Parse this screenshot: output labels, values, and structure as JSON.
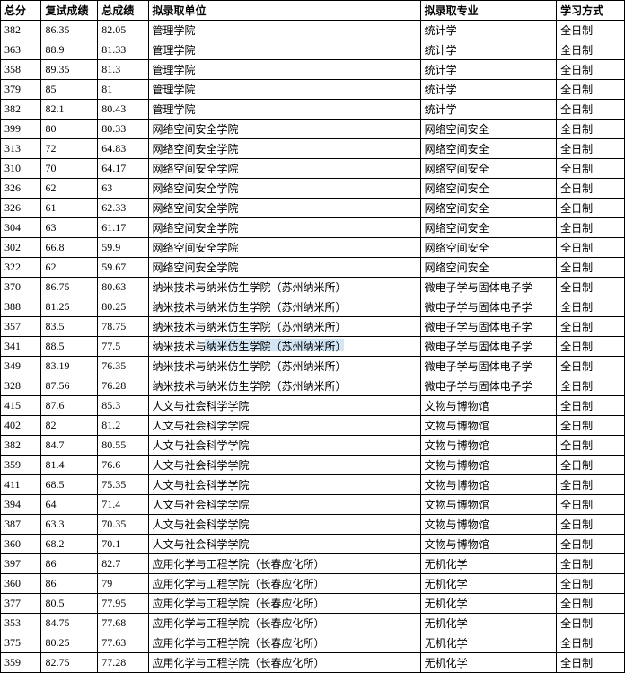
{
  "columns": [
    "总分",
    "复试成绩",
    "总成绩",
    "拟录取单位",
    "拟录取专业",
    "学习方式"
  ],
  "col_widths": [
    "col-score",
    "col-retest",
    "col-total",
    "col-dept",
    "col-major",
    "col-mode"
  ],
  "watermark_text": "与纳米仿生学院（苏州纳",
  "rows": [
    [
      "382",
      "86.35",
      "82.05",
      "管理学院",
      "统计学",
      "全日制"
    ],
    [
      "363",
      "88.9",
      "81.33",
      "管理学院",
      "统计学",
      "全日制"
    ],
    [
      "358",
      "89.35",
      "81.3",
      "管理学院",
      "统计学",
      "全日制"
    ],
    [
      "379",
      "85",
      "81",
      "管理学院",
      "统计学",
      "全日制"
    ],
    [
      "382",
      "82.1",
      "80.43",
      "管理学院",
      "统计学",
      "全日制"
    ],
    [
      "399",
      "80",
      "80.33",
      "网络空间安全学院",
      "网络空间安全",
      "全日制"
    ],
    [
      "313",
      "72",
      "64.83",
      "网络空间安全学院",
      "网络空间安全",
      "全日制"
    ],
    [
      "310",
      "70",
      "64.17",
      "网络空间安全学院",
      "网络空间安全",
      "全日制"
    ],
    [
      "326",
      "62",
      "63",
      "网络空间安全学院",
      "网络空间安全",
      "全日制"
    ],
    [
      "326",
      "61",
      "62.33",
      "网络空间安全学院",
      "网络空间安全",
      "全日制"
    ],
    [
      "304",
      "63",
      "61.17",
      "网络空间安全学院",
      "网络空间安全",
      "全日制"
    ],
    [
      "302",
      "66.8",
      "59.9",
      "网络空间安全学院",
      "网络空间安全",
      "全日制"
    ],
    [
      "322",
      "62",
      "59.67",
      "网络空间安全学院",
      "网络空间安全",
      "全日制"
    ],
    [
      "370",
      "86.75",
      "80.63",
      "纳米技术与纳米仿生学院（苏州纳米所）",
      "微电子学与固体电子学",
      "全日制"
    ],
    [
      "388",
      "81.25",
      "80.25",
      "纳米技术与纳米仿生学院（苏州纳米所）",
      "微电子学与固体电子学",
      "全日制"
    ],
    [
      "357",
      "83.5",
      "78.75",
      "纳米技术与纳米仿生学院（苏州纳米所）",
      "微电子学与固体电子学",
      "全日制"
    ],
    [
      "341",
      "88.5",
      "77.5",
      "纳米技术与纳米仿生学院（苏州纳米所）",
      "微电子学与固体电子学",
      "全日制"
    ],
    [
      "349",
      "83.19",
      "76.35",
      "纳米技术与纳米仿生学院（苏州纳米所）",
      "微电子学与固体电子学",
      "全日制"
    ],
    [
      "328",
      "87.56",
      "76.28",
      "纳米技术与纳米仿生学院（苏州纳米所）",
      "微电子学与固体电子学",
      "全日制"
    ],
    [
      "415",
      "87.6",
      "85.3",
      "人文与社会科学学院",
      "文物与博物馆",
      "全日制"
    ],
    [
      "402",
      "82",
      "81.2",
      "人文与社会科学学院",
      "文物与博物馆",
      "全日制"
    ],
    [
      "382",
      "84.7",
      "80.55",
      "人文与社会科学学院",
      "文物与博物馆",
      "全日制"
    ],
    [
      "359",
      "81.4",
      "76.6",
      "人文与社会科学学院",
      "文物与博物馆",
      "全日制"
    ],
    [
      "411",
      "68.5",
      "75.35",
      "人文与社会科学学院",
      "文物与博物馆",
      "全日制"
    ],
    [
      "394",
      "64",
      "71.4",
      "人文与社会科学学院",
      "文物与博物馆",
      "全日制"
    ],
    [
      "387",
      "63.3",
      "70.35",
      "人文与社会科学学院",
      "文物与博物馆",
      "全日制"
    ],
    [
      "360",
      "68.2",
      "70.1",
      "人文与社会科学学院",
      "文物与博物馆",
      "全日制"
    ],
    [
      "397",
      "86",
      "82.7",
      "应用化学与工程学院（长春应化所）",
      "无机化学",
      "全日制"
    ],
    [
      "360",
      "86",
      "79",
      "应用化学与工程学院（长春应化所）",
      "无机化学",
      "全日制"
    ],
    [
      "377",
      "80.5",
      "77.95",
      "应用化学与工程学院（长春应化所）",
      "无机化学",
      "全日制"
    ],
    [
      "353",
      "84.75",
      "77.68",
      "应用化学与工程学院（长春应化所）",
      "无机化学",
      "全日制"
    ],
    [
      "375",
      "80.25",
      "77.63",
      "应用化学与工程学院（长春应化所）",
      "无机化学",
      "全日制"
    ],
    [
      "359",
      "82.75",
      "77.28",
      "应用化学与工程学院（长春应化所）",
      "无机化学",
      "全日制"
    ]
  ],
  "highlight_row_index": 16
}
